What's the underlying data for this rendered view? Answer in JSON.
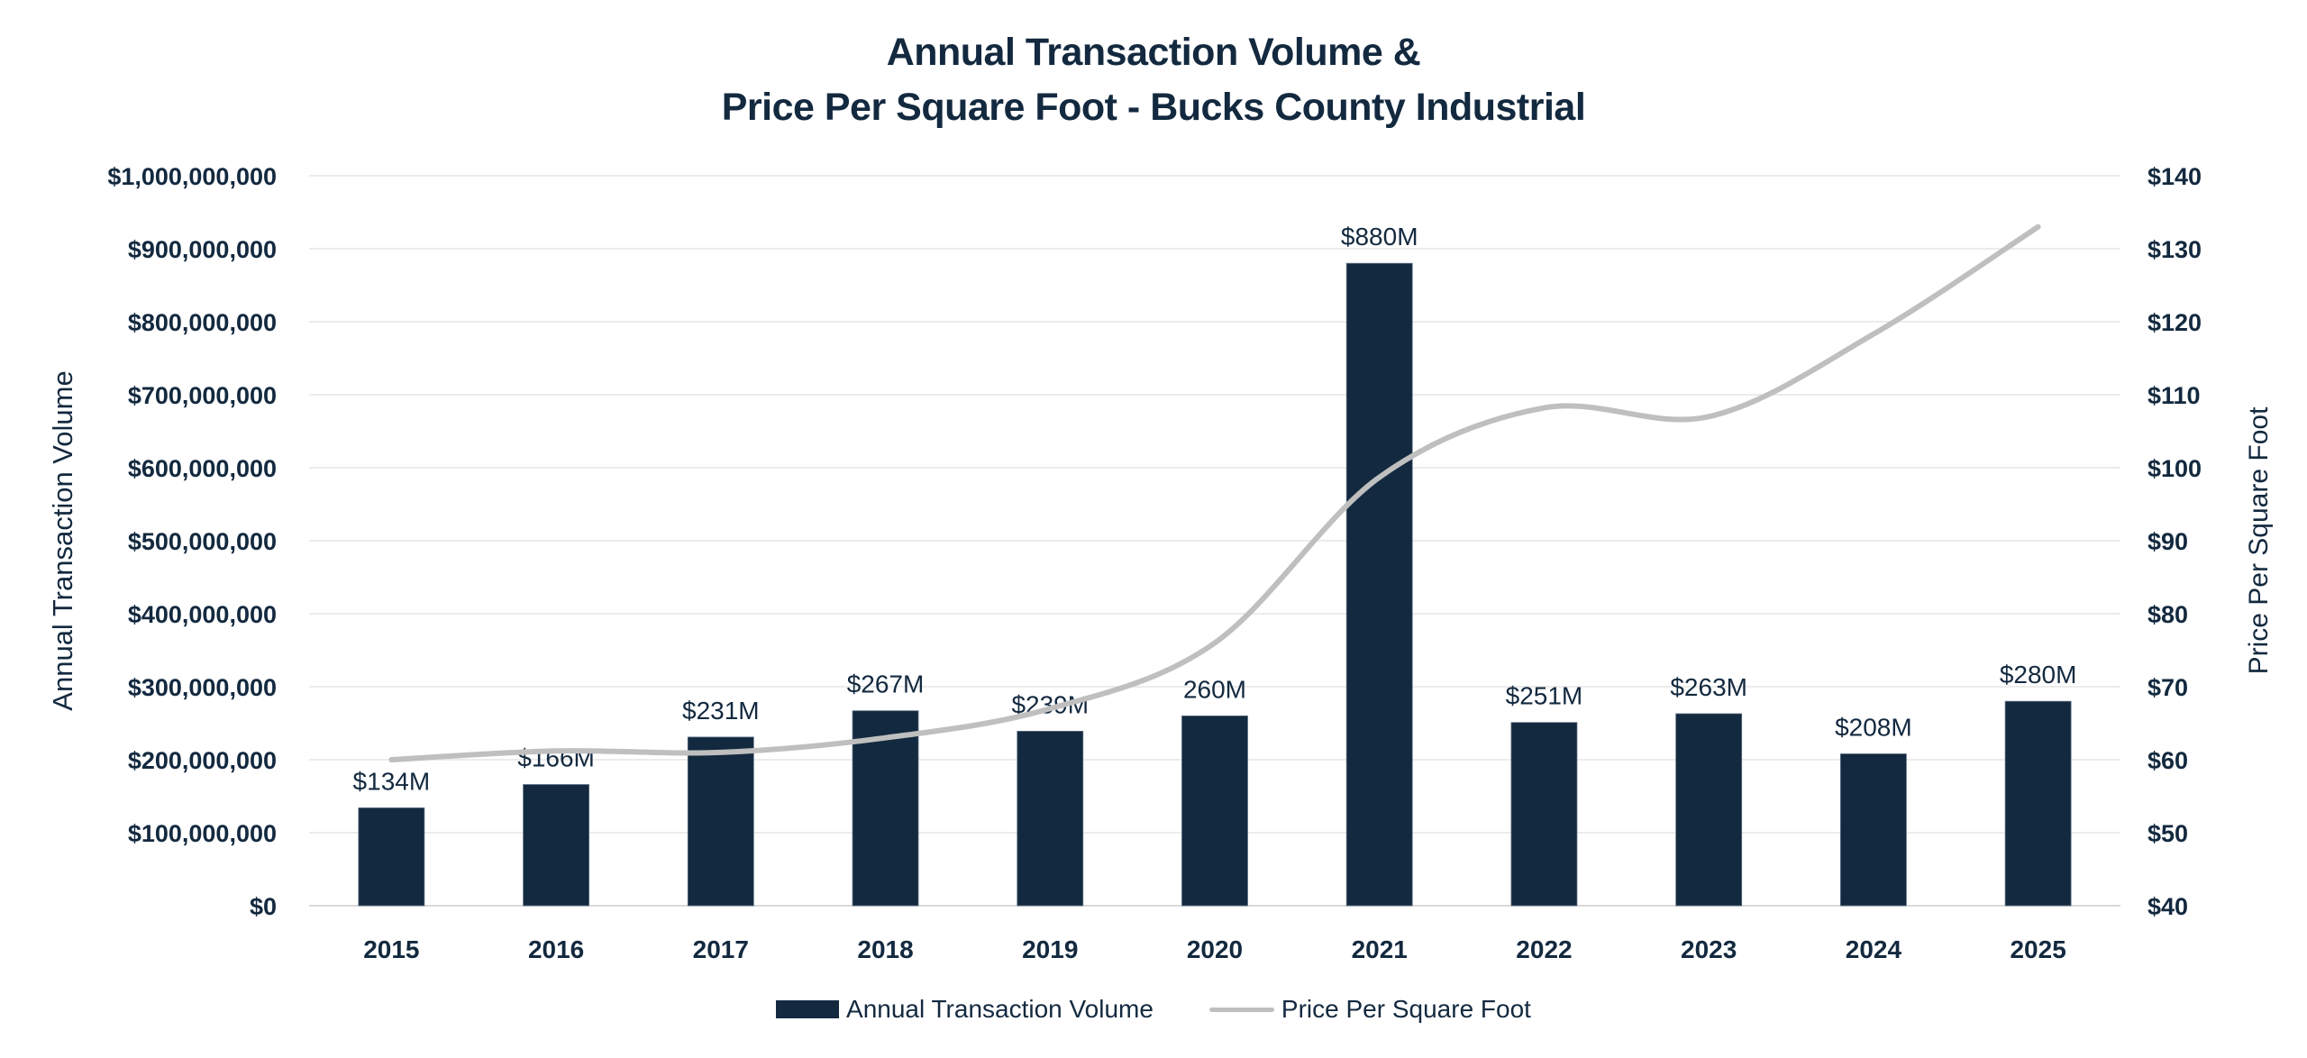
{
  "chart_data": {
    "type": "bar+line",
    "title": [
      "Annual Transaction Volume &",
      "Price Per Square Foot - Bucks County Industrial"
    ],
    "categories": [
      "2015",
      "2016",
      "2017",
      "2018",
      "2019",
      "2020",
      "2021",
      "2022",
      "2023",
      "2024",
      "2025"
    ],
    "series": [
      {
        "name": "Annual Transaction Volume",
        "type": "bar",
        "axis": "left",
        "color": "#13293f",
        "values": [
          134000000,
          166000000,
          231000000,
          267000000,
          239000000,
          260000000,
          880000000,
          251000000,
          263000000,
          208000000,
          280000000
        ],
        "data_labels": [
          "$134M",
          "$166M",
          "$231M",
          "$267M",
          "$239M",
          "260M",
          "$880M",
          "$251M",
          "$263M",
          "$208M",
          "$280M"
        ]
      },
      {
        "name": "Price Per Square Foot",
        "type": "line",
        "smooth": true,
        "axis": "right",
        "color": "#bfbfbf",
        "values": [
          60,
          61.2,
          61,
          63,
          67,
          76,
          98.7,
          108.2,
          107,
          118.3,
          133
        ]
      }
    ],
    "y_left": {
      "label": "Annual Transaction Volume",
      "range": [
        0,
        1000000000
      ],
      "ticks": [
        "$0",
        "$100,000,000",
        "$200,000,000",
        "$300,000,000",
        "$400,000,000",
        "$500,000,000",
        "$600,000,000",
        "$700,000,000",
        "$800,000,000",
        "$900,000,000",
        "$1,000,000,000"
      ]
    },
    "y_right": {
      "label": "Price Per Square Foot",
      "range": [
        40,
        140
      ],
      "ticks": [
        "$40",
        "$50",
        "$60",
        "$70",
        "$80",
        "$90",
        "$100",
        "$110",
        "$120",
        "$130",
        "$140"
      ]
    },
    "xlabel": "",
    "grid": true,
    "legend": {
      "position": "bottom-center",
      "entries": [
        "Annual Transaction Volume",
        "Price Per Square Foot"
      ]
    }
  },
  "colors": {
    "text": "#13293f",
    "bar": "#13293f",
    "line": "#bfbfbf",
    "grid": "#e6e6e6"
  }
}
